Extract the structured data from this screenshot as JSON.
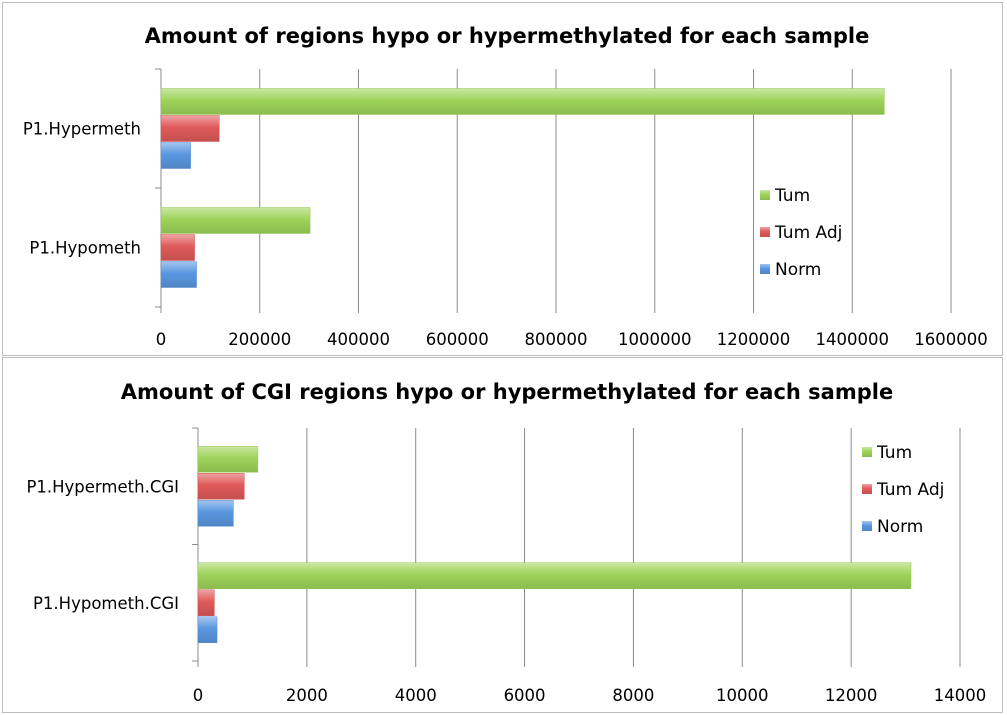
{
  "chart_data": [
    {
      "type": "bar",
      "orientation": "horizontal",
      "title": "Amount of regions hypo or hypermethylated for each sample",
      "categories": [
        "P1.Hypermeth",
        "P1.Hypometh"
      ],
      "series": [
        {
          "name": "Tum",
          "color": "#9ed45a",
          "values": [
            1465000,
            302000
          ]
        },
        {
          "name": "Tum Adj",
          "color": "#e05a5a",
          "values": [
            118000,
            68000
          ]
        },
        {
          "name": "Norm",
          "color": "#5a97e0",
          "values": [
            60000,
            72000
          ]
        }
      ],
      "xlim": [
        0,
        1600000
      ],
      "xticks": [
        "0",
        "200000",
        "400000",
        "600000",
        "800000",
        "1000000",
        "1200000",
        "1400000",
        "1600000"
      ],
      "grid": "vertical",
      "legend_position": "right"
    },
    {
      "type": "bar",
      "orientation": "horizontal",
      "title": "Amount of CGI regions hypo or hypermethylated for each sample",
      "categories": [
        "P1.Hypermeth.CGI",
        "P1.Hypometh.CGI"
      ],
      "series": [
        {
          "name": "Tum",
          "color": "#9ed45a",
          "values": [
            1100,
            13100
          ]
        },
        {
          "name": "Tum Adj",
          "color": "#e05a5a",
          "values": [
            850,
            300
          ]
        },
        {
          "name": "Norm",
          "color": "#5a97e0",
          "values": [
            650,
            350
          ]
        }
      ],
      "xlim": [
        0,
        14000
      ],
      "xticks": [
        "0",
        "2000",
        "4000",
        "6000",
        "8000",
        "10000",
        "12000",
        "14000"
      ],
      "grid": "vertical",
      "legend_position": "top-right"
    }
  ]
}
